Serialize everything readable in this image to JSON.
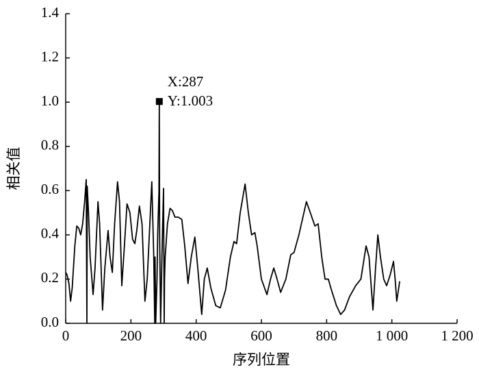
{
  "chart_data": {
    "type": "line",
    "xlabel": "序列位置",
    "ylabel": "相关值",
    "x": [
      0,
      4,
      10,
      15,
      20,
      28,
      34,
      40,
      46,
      52,
      58,
      63,
      64,
      65,
      66,
      70,
      75,
      84,
      90,
      99,
      104,
      113,
      120,
      130,
      136,
      143,
      150,
      159,
      165,
      172,
      180,
      188,
      197,
      205,
      212,
      218,
      226,
      234,
      243,
      250,
      258,
      264,
      270,
      273,
      274,
      276,
      280,
      282,
      286,
      287,
      288,
      291,
      295,
      300,
      302,
      303,
      305,
      312,
      320,
      327,
      335,
      345,
      356,
      365,
      375,
      385,
      396,
      405,
      417,
      425,
      434,
      445,
      460,
      474,
      490,
      505,
      516,
      524,
      535,
      550,
      560,
      570,
      580,
      587,
      600,
      617,
      628,
      638,
      648,
      659,
      675,
      690,
      700,
      715,
      738,
      750,
      764,
      774,
      785,
      795,
      805,
      815,
      830,
      843,
      855,
      870,
      889,
      905,
      921,
      930,
      942,
      950,
      957,
      965,
      975,
      984,
      995,
      1005,
      1010,
      1015,
      1024
    ],
    "series": [
      {
        "name": "相关值",
        "color": "#000000",
        "values": [
          0.23,
          0.22,
          0.18,
          0.1,
          0.16,
          0.35,
          0.44,
          0.43,
          0.4,
          0.45,
          0.55,
          0.65,
          0.3,
          0.0,
          0.62,
          0.5,
          0.3,
          0.13,
          0.25,
          0.55,
          0.45,
          0.06,
          0.25,
          0.42,
          0.3,
          0.23,
          0.45,
          0.64,
          0.55,
          0.17,
          0.35,
          0.54,
          0.5,
          0.38,
          0.36,
          0.42,
          0.53,
          0.45,
          0.1,
          0.2,
          0.45,
          0.64,
          0.3,
          0.0,
          0.3,
          0.0,
          0.2,
          0.4,
          0.6,
          1.003,
          0.4,
          0.0,
          0.3,
          0.61,
          0.0,
          0.2,
          0.3,
          0.45,
          0.52,
          0.51,
          0.48,
          0.48,
          0.47,
          0.35,
          0.18,
          0.3,
          0.39,
          0.25,
          0.04,
          0.2,
          0.25,
          0.16,
          0.08,
          0.07,
          0.15,
          0.3,
          0.37,
          0.36,
          0.5,
          0.63,
          0.5,
          0.4,
          0.41,
          0.35,
          0.2,
          0.13,
          0.2,
          0.25,
          0.2,
          0.14,
          0.2,
          0.31,
          0.32,
          0.4,
          0.55,
          0.5,
          0.44,
          0.45,
          0.3,
          0.2,
          0.2,
          0.15,
          0.08,
          0.04,
          0.06,
          0.12,
          0.17,
          0.2,
          0.35,
          0.3,
          0.06,
          0.25,
          0.4,
          0.3,
          0.2,
          0.17,
          0.22,
          0.28,
          0.2,
          0.1,
          0.19
        ]
      }
    ],
    "xlim": [
      0,
      1200
    ],
    "xticks": [
      0,
      200,
      400,
      600,
      800,
      {
        "value": 1000,
        "label": "1 000"
      },
      {
        "value": 1200,
        "label": "1 200"
      }
    ],
    "ylim": [
      0,
      1.4
    ],
    "yticks": [
      {
        "value": 0,
        "label": "0.0"
      },
      0.2,
      0.4,
      0.6,
      0.8,
      {
        "value": 1,
        "label": "1.0"
      },
      1.2,
      1.4
    ],
    "annotation": {
      "x": 287,
      "y": 1.003,
      "labels": [
        "X:287",
        "Y:1.003"
      ]
    }
  }
}
